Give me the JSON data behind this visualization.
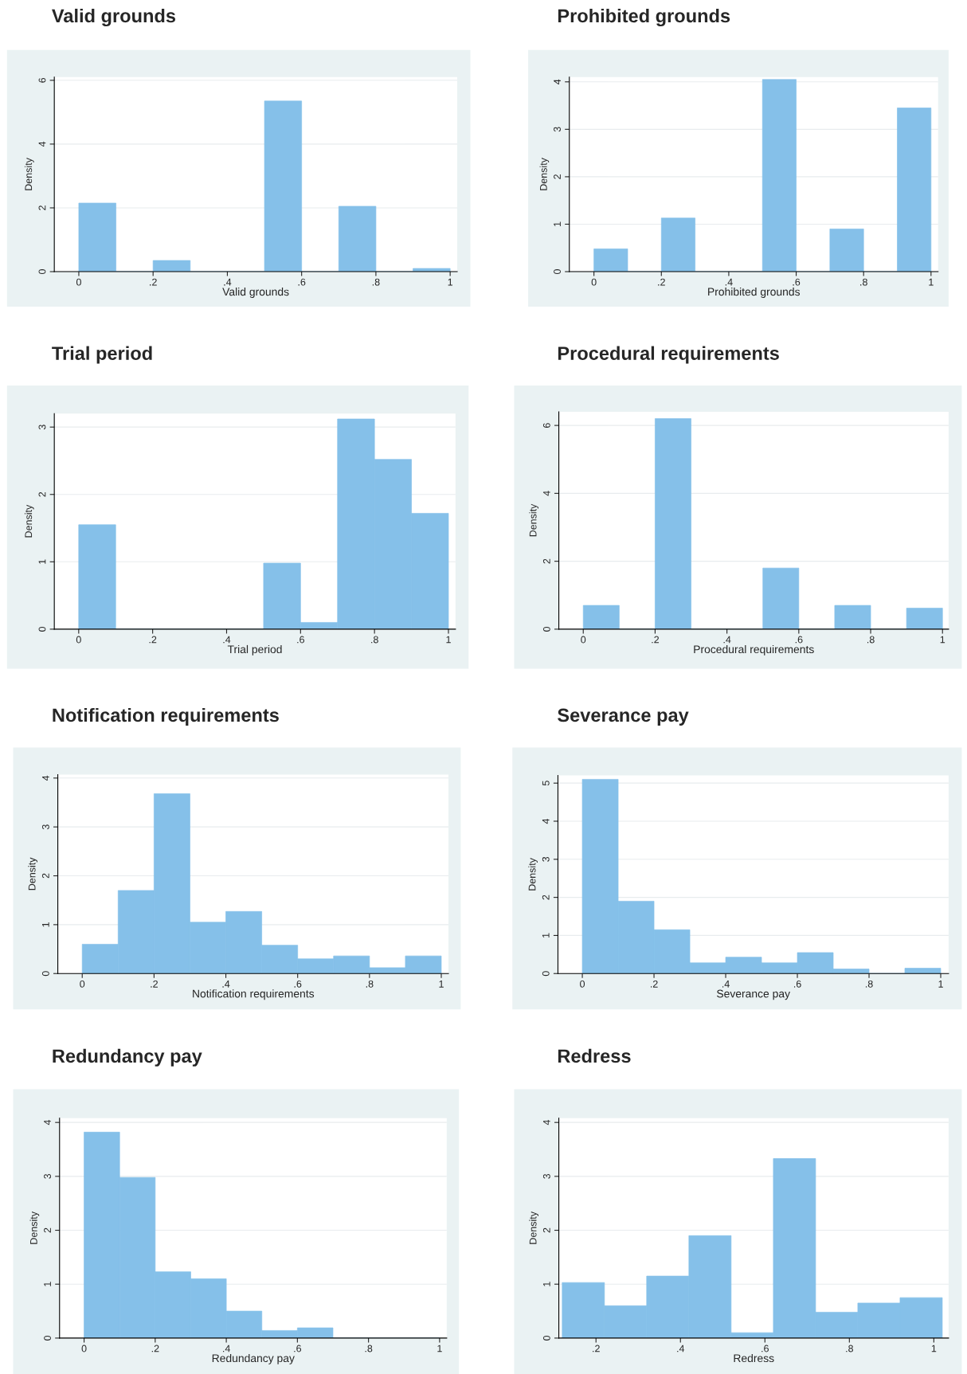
{
  "chart_data": [
    {
      "type": "histogram",
      "title": "Valid grounds",
      "xlabel": "Valid grounds",
      "ylabel": "Density",
      "color": "#85c0e9",
      "grid": "y",
      "bins": [
        0,
        0.1,
        0.2,
        0.3,
        0.4,
        0.5,
        0.6,
        0.7,
        0.8,
        0.9,
        1.0
      ],
      "values": [
        2.15,
        0,
        0.35,
        0,
        0,
        5.35,
        0,
        2.05,
        0,
        0.1
      ],
      "xlim": [
        -0.066,
        1.019
      ],
      "ylim": [
        0,
        6.1
      ],
      "xticks": [
        0,
        {
          "value": 0.2,
          "label": ".2"
        },
        {
          "value": 0.4,
          "label": ".4"
        },
        {
          "value": 0.6,
          "label": ".6"
        },
        {
          "value": 0.8,
          "label": ".8"
        },
        1
      ],
      "yticks": [
        0,
        2,
        4,
        6
      ]
    },
    {
      "type": "histogram",
      "title": "Prohibited grounds",
      "xlabel": "Prohibited grounds",
      "ylabel": "Density",
      "color": "#85c0e9",
      "grid": "y",
      "bins": [
        0,
        0.1,
        0.2,
        0.3,
        0.4,
        0.5,
        0.6,
        0.7,
        0.8,
        0.9,
        1.0
      ],
      "values": [
        0.48,
        0,
        1.13,
        0,
        0,
        4.05,
        0,
        0.9,
        0,
        3.45
      ],
      "xlim": [
        -0.073,
        1.021
      ],
      "ylim": [
        0,
        4.1
      ],
      "xticks": [
        0,
        {
          "value": 0.2,
          "label": ".2"
        },
        {
          "value": 0.4,
          "label": ".4"
        },
        {
          "value": 0.6,
          "label": ".6"
        },
        {
          "value": 0.8,
          "label": ".8"
        },
        1
      ],
      "yticks": [
        0,
        1,
        2,
        3,
        4
      ]
    },
    {
      "type": "histogram",
      "title": "Trial period",
      "xlabel": "Trial period",
      "ylabel": "Density",
      "color": "#85c0e9",
      "grid": "y",
      "bins": [
        0,
        0.1,
        0.2,
        0.3,
        0.4,
        0.5,
        0.6,
        0.7,
        0.8,
        0.9,
        1.0
      ],
      "values": [
        1.55,
        0,
        0,
        0,
        0,
        0.98,
        0.1,
        3.12,
        2.52,
        1.72
      ],
      "xlim": [
        -0.066,
        1.019
      ],
      "ylim": [
        0,
        3.2
      ],
      "xticks": [
        0,
        {
          "value": 0.2,
          "label": ".2"
        },
        {
          "value": 0.4,
          "label": ".4"
        },
        {
          "value": 0.6,
          "label": ".6"
        },
        {
          "value": 0.8,
          "label": ".8"
        },
        1
      ],
      "yticks": [
        0,
        1,
        2,
        3
      ]
    },
    {
      "type": "histogram",
      "title": "Procedural requirements",
      "xlabel": "Procedural requirements",
      "ylabel": "Density",
      "color": "#85c0e9",
      "grid": "y",
      "bins": [
        0,
        0.1,
        0.2,
        0.3,
        0.4,
        0.5,
        0.6,
        0.7,
        0.8,
        0.9,
        1.0
      ],
      "values": [
        0.7,
        0,
        6.2,
        0,
        0,
        1.8,
        0,
        0.7,
        0,
        0.62
      ],
      "xlim": [
        -0.068,
        1.017
      ],
      "ylim": [
        0,
        6.4
      ],
      "xticks": [
        0,
        {
          "value": 0.2,
          "label": ".2"
        },
        {
          "value": 0.4,
          "label": ".4"
        },
        {
          "value": 0.6,
          "label": ".6"
        },
        {
          "value": 0.8,
          "label": ".8"
        },
        1
      ],
      "yticks": [
        0,
        2,
        4,
        6
      ]
    },
    {
      "type": "histogram",
      "title": "Notification requirements",
      "xlabel": "Notification requirements",
      "ylabel": "Density",
      "color": "#85c0e9",
      "grid": "y",
      "bins": [
        0,
        0.1,
        0.2,
        0.3,
        0.4,
        0.5,
        0.6,
        0.7,
        0.8,
        0.9,
        1.0
      ],
      "values": [
        0.6,
        1.7,
        3.68,
        1.05,
        1.27,
        0.58,
        0.3,
        0.36,
        0.12,
        0.36
      ],
      "xlim": [
        -0.068,
        1.02
      ],
      "ylim": [
        0,
        4.07
      ],
      "xticks": [
        0,
        {
          "value": 0.2,
          "label": ".2"
        },
        {
          "value": 0.4,
          "label": ".4"
        },
        {
          "value": 0.6,
          "label": ".6"
        },
        {
          "value": 0.8,
          "label": ".8"
        },
        1
      ],
      "yticks": [
        0,
        1,
        2,
        3,
        4
      ]
    },
    {
      "type": "histogram",
      "title": "Severance pay",
      "xlabel": "Severance pay",
      "ylabel": "Density",
      "color": "#85c0e9",
      "grid": "y",
      "bins": [
        0,
        0.1,
        0.2,
        0.3,
        0.4,
        0.5,
        0.6,
        0.7,
        0.8,
        0.9,
        1.0
      ],
      "values": [
        5.1,
        1.9,
        1.15,
        0.28,
        0.43,
        0.28,
        0.55,
        0.12,
        0,
        0.14
      ],
      "xlim": [
        -0.068,
        1.022
      ],
      "ylim": [
        0,
        5.2
      ],
      "xticks": [
        0,
        {
          "value": 0.2,
          "label": ".2"
        },
        {
          "value": 0.4,
          "label": ".4"
        },
        {
          "value": 0.6,
          "label": ".6"
        },
        {
          "value": 0.8,
          "label": ".8"
        },
        1
      ],
      "yticks": [
        0,
        1,
        2,
        3,
        4,
        5
      ]
    },
    {
      "type": "histogram",
      "title": "Redundancy pay",
      "xlabel": "Redundancy pay",
      "ylabel": "Density",
      "color": "#85c0e9",
      "grid": "y",
      "bins": [
        0,
        0.1,
        0.2,
        0.3,
        0.4,
        0.5,
        0.6,
        0.7,
        0.8,
        0.9,
        1.0
      ],
      "values": [
        3.82,
        2.98,
        1.23,
        1.1,
        0.5,
        0.14,
        0.19,
        0,
        0,
        0
      ],
      "xlim": [
        -0.069,
        1.02
      ],
      "ylim": [
        0,
        4.08
      ],
      "xticks": [
        0,
        {
          "value": 0.2,
          "label": ".2"
        },
        {
          "value": 0.4,
          "label": ".4"
        },
        {
          "value": 0.6,
          "label": ".6"
        },
        {
          "value": 0.8,
          "label": ".8"
        },
        1
      ],
      "yticks": [
        0,
        1,
        2,
        3,
        4
      ]
    },
    {
      "type": "histogram",
      "title": "Redress",
      "xlabel": "Redress",
      "ylabel": "Density",
      "color": "#85c0e9",
      "grid": "y",
      "bins": [
        0.12,
        0.22,
        0.32,
        0.42,
        0.52,
        0.62,
        0.72,
        0.82,
        0.92,
        1.02
      ],
      "values": [
        1.03,
        0.6,
        1.15,
        1.9,
        0.1,
        3.33,
        0.48,
        0.65,
        0.75
      ],
      "xlim": [
        0.112,
        1.035
      ],
      "ylim": [
        0,
        4.08
      ],
      "xticks": [
        {
          "value": 0.2,
          "label": ".2"
        },
        {
          "value": 0.4,
          "label": ".4"
        },
        {
          "value": 0.6,
          "label": ".6"
        },
        {
          "value": 0.8,
          "label": ".8"
        },
        1
      ],
      "yticks": [
        0,
        1,
        2,
        3,
        4
      ]
    }
  ]
}
